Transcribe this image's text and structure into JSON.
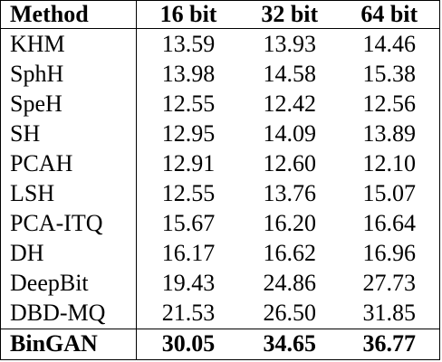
{
  "table": {
    "headers": [
      "Method",
      "16 bit",
      "32 bit",
      "64 bit"
    ],
    "rows": [
      {
        "method": "KHM",
        "v16": "13.59",
        "v32": "13.93",
        "v64": "14.46"
      },
      {
        "method": "SphH",
        "v16": "13.98",
        "v32": "14.58",
        "v64": "15.38"
      },
      {
        "method": "SpeH",
        "v16": "12.55",
        "v32": "12.42",
        "v64": "12.56"
      },
      {
        "method": "SH",
        "v16": "12.95",
        "v32": "14.09",
        "v64": "13.89"
      },
      {
        "method": "PCAH",
        "v16": "12.91",
        "v32": "12.60",
        "v64": "12.10"
      },
      {
        "method": "LSH",
        "v16": "12.55",
        "v32": "13.76",
        "v64": "15.07"
      },
      {
        "method": "PCA-ITQ",
        "v16": "15.67",
        "v32": "16.20",
        "v64": "16.64"
      },
      {
        "method": "DH",
        "v16": "16.17",
        "v32": "16.62",
        "v64": "16.96"
      },
      {
        "method": "DeepBit",
        "v16": "19.43",
        "v32": "24.86",
        "v64": "27.73"
      },
      {
        "method": "DBD-MQ",
        "v16": "21.53",
        "v32": "26.50",
        "v64": "31.85"
      }
    ],
    "best_row": {
      "method": "BinGAN",
      "v16": "30.05",
      "v32": "34.65",
      "v64": "36.77"
    }
  }
}
